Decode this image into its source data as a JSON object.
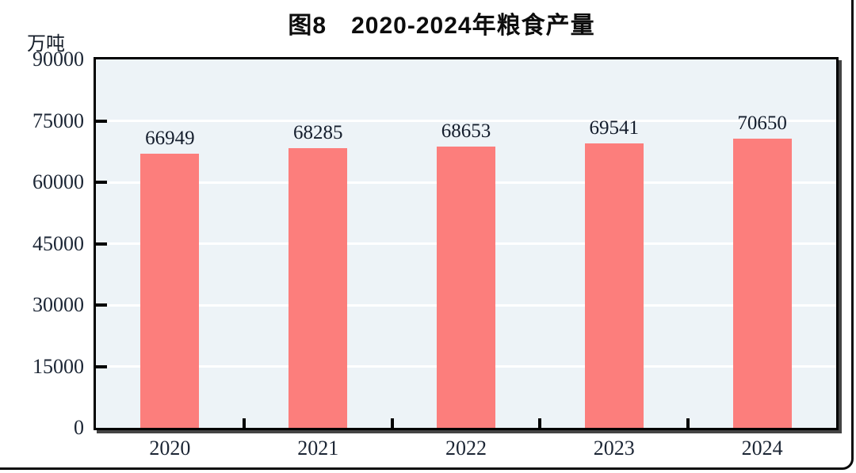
{
  "page": {
    "title": "图8　2020-2024年粮食产量",
    "unit_label": "万吨"
  },
  "colors": {
    "bar_fill": "#FC7E7C",
    "plot_background": "#EDF3F7",
    "gridline": "#FFFFFF",
    "frame": "#000000",
    "plot_shadow": "rgba(35,35,35,0.85)",
    "label_text": "#1B2534"
  },
  "chart_data": {
    "type": "bar",
    "title": "图8　2020-2024年粮食产量",
    "categories": [
      "2020",
      "2021",
      "2022",
      "2023",
      "2024"
    ],
    "values": [
      66949,
      68285,
      68653,
      69541,
      70650
    ],
    "data_labels": [
      "66949",
      "68285",
      "68653",
      "69541",
      "70650"
    ],
    "xlabel": "",
    "ylabel": "万吨",
    "ylim": [
      0,
      90000
    ],
    "ytick_step": 15000,
    "yticks": [
      0,
      15000,
      30000,
      45000,
      60000,
      75000,
      90000
    ],
    "grid": true,
    "legend_position": "none"
  }
}
